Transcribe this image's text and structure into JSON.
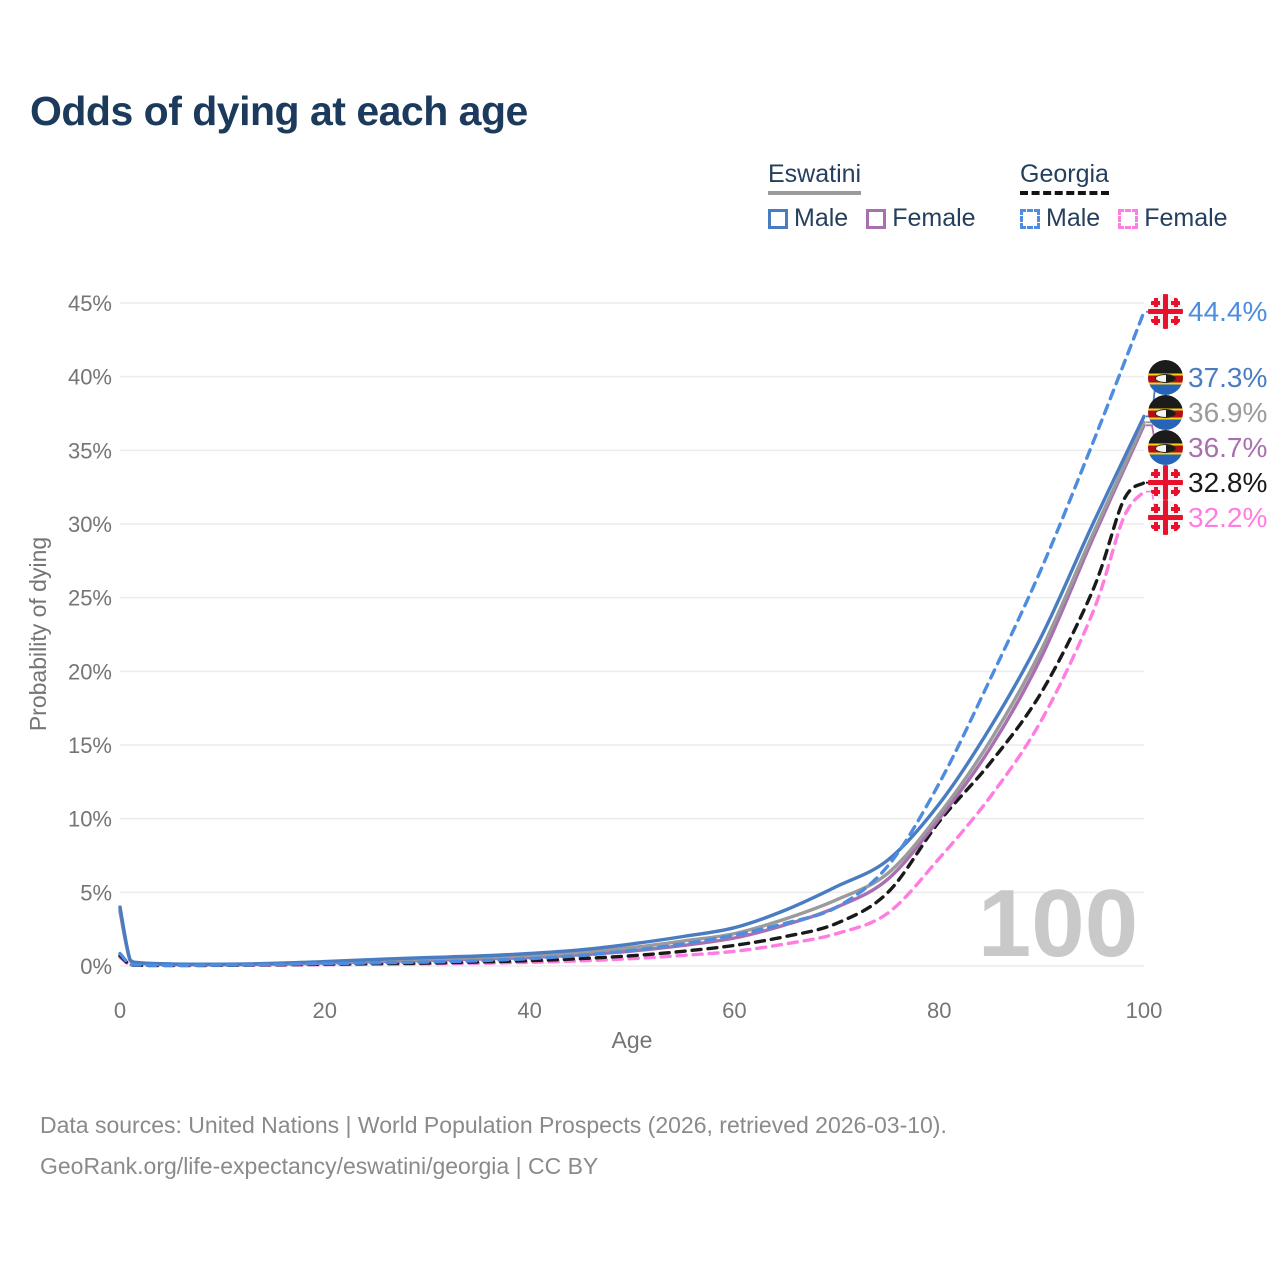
{
  "page": {
    "title": "Odds of dying at each age",
    "watermark": "100"
  },
  "legend": {
    "groups": [
      {
        "name": "Eswatini",
        "style": "solid",
        "underline_color": "#9b9b9b",
        "items": [
          {
            "label": "Male",
            "color": "#4a7cc2"
          },
          {
            "label": "Female",
            "color": "#a96fb0"
          }
        ]
      },
      {
        "name": "Georgia",
        "style": "dashed",
        "underline_color": "#141414",
        "items": [
          {
            "label": "Male",
            "color": "#4e8ce0"
          },
          {
            "label": "Female",
            "color": "#ff7de1"
          }
        ]
      }
    ]
  },
  "axes": {
    "y": {
      "title": "Probability of dying",
      "ticks": [
        "0%",
        "5%",
        "10%",
        "15%",
        "20%",
        "25%",
        "30%",
        "35%",
        "40%",
        "45%"
      ],
      "min": 0,
      "max": 45
    },
    "x": {
      "title": "Age",
      "ticks": [
        0,
        20,
        40,
        60,
        80,
        100
      ],
      "min": 0,
      "max": 100
    }
  },
  "footer": {
    "line1": "Data sources: United Nations | World Population Prospects (2026, retrieved 2026-03-10).",
    "line2": "GeoRank.org/life-expectancy/eswatini/georgia | CC BY"
  },
  "chart_data": {
    "type": "line",
    "title": "Odds of dying at each age",
    "xlabel": "Age",
    "ylabel": "Probability of dying",
    "xlim": [
      0,
      100
    ],
    "ylim": [
      0,
      45
    ],
    "unit": "%",
    "grid": "horizontal",
    "legend_position": "top-right",
    "series": [
      {
        "id": "georgia-male",
        "name": "Georgia — Male",
        "color": "#4e8ce0",
        "dashed": true,
        "flag": "georgia",
        "end_label": "44.4%",
        "points": [
          [
            0,
            0.85
          ],
          [
            1,
            0.1
          ],
          [
            2,
            0.06
          ],
          [
            5,
            0.05
          ],
          [
            10,
            0.06
          ],
          [
            15,
            0.1
          ],
          [
            20,
            0.16
          ],
          [
            25,
            0.21
          ],
          [
            30,
            0.27
          ],
          [
            35,
            0.36
          ],
          [
            40,
            0.5
          ],
          [
            45,
            0.72
          ],
          [
            50,
            1.05
          ],
          [
            55,
            1.5
          ],
          [
            60,
            2.1
          ],
          [
            65,
            2.9
          ],
          [
            70,
            4.0
          ],
          [
            75,
            6.8
          ],
          [
            80,
            12.4
          ],
          [
            85,
            19.5
          ],
          [
            90,
            27.0
          ],
          [
            95,
            35.5
          ],
          [
            100,
            44.4
          ]
        ]
      },
      {
        "id": "eswatini-male",
        "name": "Eswatini — Male",
        "color": "#4a7cc2",
        "dashed": false,
        "flag": "eswatini",
        "end_label": "37.3%",
        "points": [
          [
            0,
            4.0
          ],
          [
            1,
            0.4
          ],
          [
            2,
            0.22
          ],
          [
            5,
            0.14
          ],
          [
            10,
            0.12
          ],
          [
            15,
            0.18
          ],
          [
            20,
            0.3
          ],
          [
            25,
            0.45
          ],
          [
            30,
            0.57
          ],
          [
            35,
            0.68
          ],
          [
            40,
            0.85
          ],
          [
            45,
            1.1
          ],
          [
            50,
            1.5
          ],
          [
            55,
            2.0
          ],
          [
            60,
            2.6
          ],
          [
            65,
            3.8
          ],
          [
            70,
            5.4
          ],
          [
            75,
            7.2
          ],
          [
            80,
            11.0
          ],
          [
            85,
            16.2
          ],
          [
            90,
            22.4
          ],
          [
            95,
            30.0
          ],
          [
            100,
            37.3
          ]
        ]
      },
      {
        "id": "eswatini-both",
        "name": "Eswatini — Both sexes",
        "color": "#9b9b9b",
        "dashed": false,
        "flag": "eswatini",
        "end_label": "36.9%",
        "points": [
          [
            0,
            3.85
          ],
          [
            1,
            0.38
          ],
          [
            2,
            0.2
          ],
          [
            5,
            0.12
          ],
          [
            10,
            0.1
          ],
          [
            15,
            0.15
          ],
          [
            20,
            0.25
          ],
          [
            25,
            0.38
          ],
          [
            30,
            0.47
          ],
          [
            35,
            0.57
          ],
          [
            40,
            0.7
          ],
          [
            45,
            0.92
          ],
          [
            50,
            1.25
          ],
          [
            55,
            1.7
          ],
          [
            60,
            2.2
          ],
          [
            65,
            3.2
          ],
          [
            70,
            4.5
          ],
          [
            75,
            6.3
          ],
          [
            80,
            10.3
          ],
          [
            85,
            15.3
          ],
          [
            90,
            21.5
          ],
          [
            95,
            29.3
          ],
          [
            100,
            36.9
          ]
        ]
      },
      {
        "id": "eswatini-female",
        "name": "Eswatini — Female",
        "color": "#a96fb0",
        "dashed": false,
        "flag": "eswatini",
        "end_label": "36.7%",
        "points": [
          [
            0,
            3.7
          ],
          [
            1,
            0.36
          ],
          [
            2,
            0.18
          ],
          [
            5,
            0.1
          ],
          [
            10,
            0.09
          ],
          [
            15,
            0.12
          ],
          [
            20,
            0.2
          ],
          [
            25,
            0.3
          ],
          [
            30,
            0.39
          ],
          [
            35,
            0.47
          ],
          [
            40,
            0.58
          ],
          [
            45,
            0.76
          ],
          [
            50,
            1.02
          ],
          [
            55,
            1.4
          ],
          [
            60,
            1.9
          ],
          [
            65,
            2.8
          ],
          [
            70,
            4.0
          ],
          [
            75,
            5.9
          ],
          [
            80,
            10.0
          ],
          [
            85,
            14.8
          ],
          [
            90,
            21.0
          ],
          [
            95,
            29.0
          ],
          [
            100,
            36.7
          ]
        ]
      },
      {
        "id": "georgia-both",
        "name": "Georgia — Both sexes",
        "color": "#1a1a1a",
        "dashed": true,
        "flag": "georgia",
        "end_label": "32.8%",
        "points": [
          [
            0,
            0.7
          ],
          [
            1,
            0.08
          ],
          [
            2,
            0.05
          ],
          [
            5,
            0.04
          ],
          [
            10,
            0.05
          ],
          [
            15,
            0.08
          ],
          [
            20,
            0.12
          ],
          [
            25,
            0.16
          ],
          [
            30,
            0.2
          ],
          [
            35,
            0.27
          ],
          [
            40,
            0.36
          ],
          [
            45,
            0.5
          ],
          [
            50,
            0.7
          ],
          [
            55,
            1.0
          ],
          [
            60,
            1.4
          ],
          [
            65,
            2.0
          ],
          [
            70,
            2.9
          ],
          [
            75,
            5.0
          ],
          [
            80,
            9.8
          ],
          [
            85,
            13.8
          ],
          [
            90,
            18.6
          ],
          [
            95,
            25.5
          ],
          [
            98,
            31.6
          ],
          [
            100,
            32.8
          ]
        ]
      },
      {
        "id": "georgia-female",
        "name": "Georgia — Female",
        "color": "#ff7de1",
        "dashed": true,
        "flag": "georgia",
        "end_label": "32.2%",
        "points": [
          [
            0,
            0.6
          ],
          [
            1,
            0.07
          ],
          [
            2,
            0.04
          ],
          [
            5,
            0.03
          ],
          [
            10,
            0.04
          ],
          [
            15,
            0.06
          ],
          [
            20,
            0.09
          ],
          [
            25,
            0.12
          ],
          [
            30,
            0.15
          ],
          [
            35,
            0.19
          ],
          [
            40,
            0.25
          ],
          [
            45,
            0.35
          ],
          [
            50,
            0.5
          ],
          [
            55,
            0.72
          ],
          [
            60,
            1.0
          ],
          [
            65,
            1.5
          ],
          [
            70,
            2.2
          ],
          [
            75,
            3.6
          ],
          [
            80,
            7.3
          ],
          [
            85,
            11.5
          ],
          [
            90,
            16.7
          ],
          [
            95,
            24.0
          ],
          [
            98,
            30.4
          ],
          [
            100,
            32.2
          ]
        ]
      }
    ]
  }
}
